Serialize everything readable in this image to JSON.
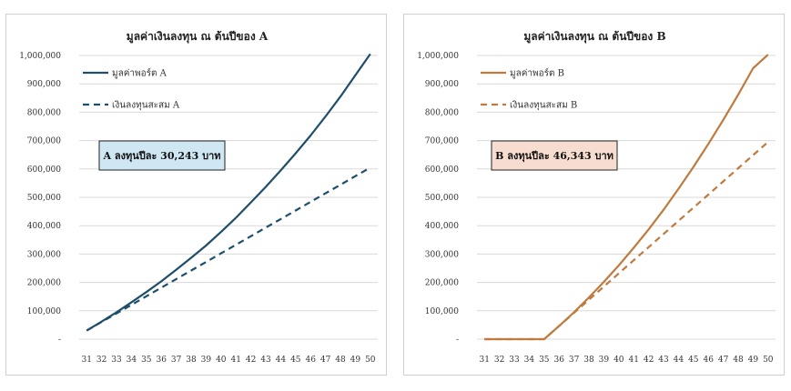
{
  "chart_data": [
    {
      "type": "line",
      "title": "มูลค่าเงินลงทุน ณ ต้นปีของ A",
      "x": [
        31,
        32,
        33,
        34,
        35,
        36,
        37,
        38,
        39,
        40,
        41,
        42,
        43,
        44,
        45,
        46,
        47,
        48,
        49,
        50
      ],
      "ylim": [
        0,
        1000000
      ],
      "y_ticks": [
        "-",
        "100,000",
        "200,000",
        "300,000",
        "400,000",
        "500,000",
        "600,000",
        "700,000",
        "800,000",
        "900,000",
        "1,000,000"
      ],
      "series": [
        {
          "name": "มูลค่าพอร์ต A",
          "style": "solid",
          "color": "#1f4e6b",
          "values": [
            30000,
            62000,
            95000,
            130000,
            166000,
            204000,
            245000,
            287000,
            330000,
            378000,
            428000,
            482000,
            537000,
            595000,
            655000,
            718000,
            785000,
            855000,
            930000,
            1005000
          ]
        },
        {
          "name": "เงินลงทุนสะสม A",
          "style": "dashed",
          "color": "#1f4e6b",
          "values": [
            30243,
            60486,
            90729,
            120972,
            151215,
            181458,
            211701,
            241944,
            272187,
            302430,
            332673,
            362916,
            393159,
            423402,
            453645,
            483888,
            514131,
            544374,
            574617,
            604860
          ]
        }
      ],
      "callout": {
        "text": "A ลงทุนปีละ 30,243 บาท",
        "bg": "#cfe6f3"
      },
      "grid": true,
      "legend": "top-left"
    },
    {
      "type": "line",
      "title": "มูลค่าเงินลงทุน ณ ต้นปีของ B",
      "x": [
        31,
        32,
        33,
        34,
        35,
        36,
        37,
        38,
        39,
        40,
        41,
        42,
        43,
        44,
        45,
        46,
        47,
        48,
        49,
        50
      ],
      "ylim": [
        0,
        1000000
      ],
      "y_ticks": [
        "-",
        "100,000",
        "200,000",
        "300,000",
        "400,000",
        "500,000",
        "600,000",
        "700,000",
        "800,000",
        "900,000",
        "1,000,000"
      ],
      "series": [
        {
          "name": "มูลค่าพอร์ต B",
          "style": "solid",
          "color": "#c07a3e",
          "values": [
            0,
            0,
            0,
            0,
            0,
            46000,
            95000,
            147000,
            202000,
            260000,
            322000,
            387000,
            456000,
            530000,
            607000,
            688000,
            773000,
            862000,
            955000,
            1003000
          ]
        },
        {
          "name": "เงินลงทุนสะสม B",
          "style": "dashed",
          "color": "#c07a3e",
          "values": [
            0,
            0,
            0,
            0,
            0,
            46343,
            92686,
            139029,
            185372,
            231715,
            278058,
            324401,
            370744,
            417087,
            463430,
            509773,
            556116,
            602459,
            648802,
            695145
          ]
        }
      ],
      "callout": {
        "text": "B ลงทุนปีละ 46,343 บาท",
        "bg": "#f7ddd0"
      },
      "grid": true,
      "legend": "top-left"
    }
  ]
}
